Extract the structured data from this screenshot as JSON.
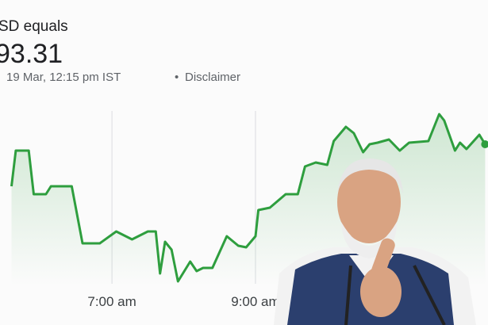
{
  "header": {
    "title": "SD equals",
    "price": "93.31",
    "timestamp": "19 Mar, 12:15 pm IST",
    "separator": "•",
    "disclaimer": "Disclaimer"
  },
  "chart_data": {
    "type": "line",
    "color": "#2e9e3e",
    "x": [
      5.6,
      5.66,
      5.84,
      5.91,
      6.08,
      6.15,
      6.44,
      6.59,
      6.83,
      7.06,
      7.28,
      7.5,
      7.61,
      7.67,
      7.74,
      7.83,
      7.92,
      8.09,
      8.18,
      8.27,
      8.4,
      8.6,
      8.76,
      8.87,
      9.0,
      9.04,
      9.2,
      9.42,
      9.59,
      9.69,
      9.84,
      10.0,
      10.09,
      10.26,
      10.37,
      10.5,
      10.59,
      10.7,
      10.86,
      11.01,
      11.14,
      11.41,
      11.56,
      11.63,
      11.78,
      11.85,
      11.94,
      12.12,
      12.2
    ],
    "values": [
      125,
      170,
      170,
      115,
      115,
      125,
      125,
      53,
      53,
      68,
      58,
      68,
      68,
      15,
      55,
      45,
      5,
      30,
      18,
      22,
      22,
      62,
      50,
      48,
      62,
      95,
      98,
      115,
      115,
      150,
      155,
      152,
      182,
      200,
      192,
      168,
      178,
      180,
      184,
      170,
      180,
      182,
      216,
      208,
      170,
      180,
      172,
      190,
      178
    ],
    "xlim": [
      5.44,
      12.24
    ],
    "ylim": [
      0,
      230
    ],
    "xticks": [
      {
        "value": 7,
        "label": "7:00 am"
      },
      {
        "value": 9,
        "label": "9:00 am"
      }
    ],
    "grid": true
  }
}
